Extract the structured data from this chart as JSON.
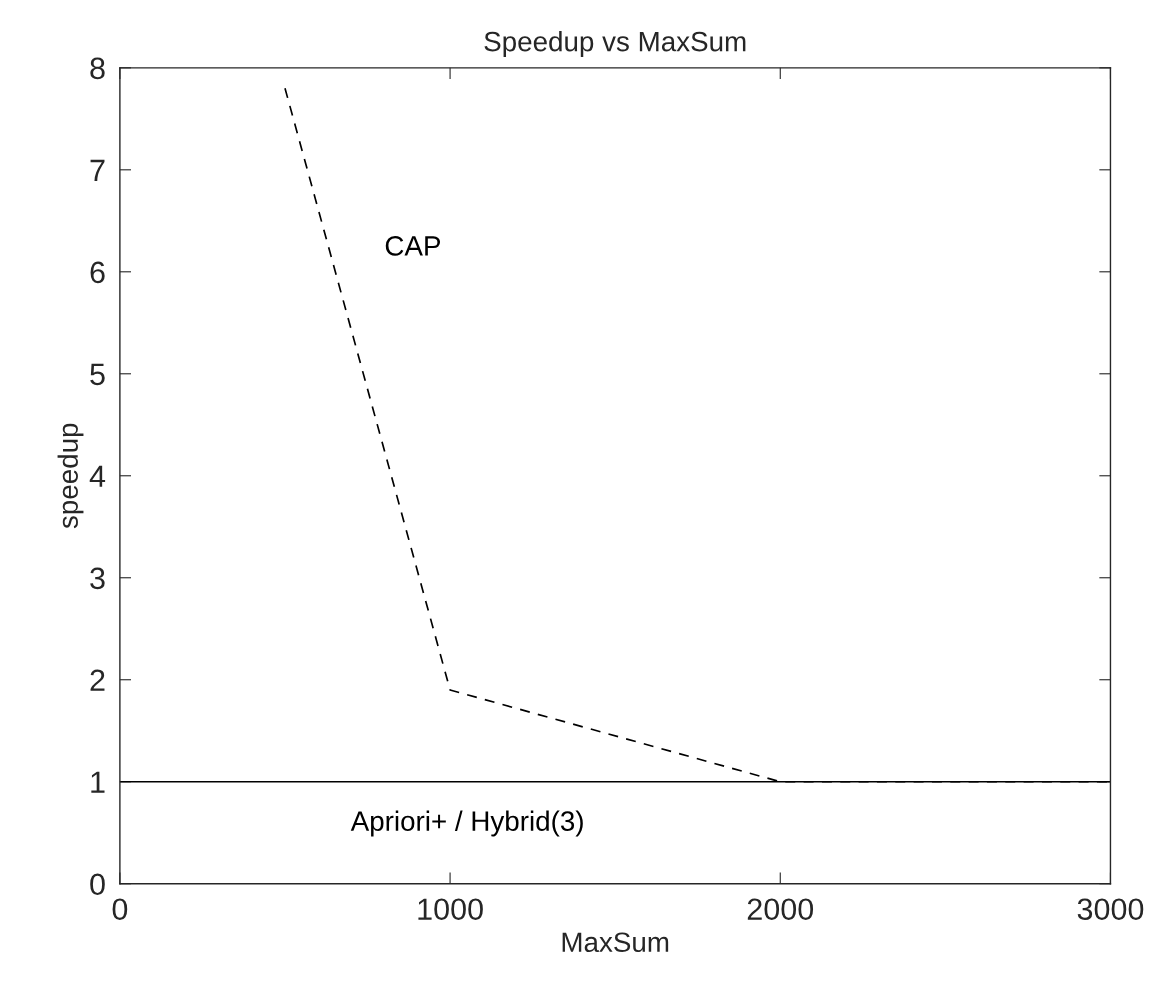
{
  "chart_data": {
    "type": "line",
    "title": "Speedup vs MaxSum",
    "xlabel": "MaxSum",
    "ylabel": "speedup",
    "xlim": [
      0,
      3000
    ],
    "xticks": [
      0,
      1000,
      2000,
      3000
    ],
    "ylim": [
      0,
      8
    ],
    "yticks": [
      0,
      1,
      2,
      3,
      4,
      5,
      6,
      7,
      8
    ],
    "grid": false,
    "legend": false,
    "marker": "none",
    "series": [
      {
        "name": "CAP",
        "color": "#000000",
        "line_style": "dashed",
        "x": [
          500,
          1000,
          2000,
          3000
        ],
        "values": [
          7.8,
          1.9,
          1.0,
          1.0
        ]
      },
      {
        "name": "Apriori+ / Hybrid(3)",
        "color": "#000000",
        "line_style": "solid",
        "x": [
          0,
          3000
        ],
        "values": [
          1.0,
          1.0
        ]
      }
    ]
  }
}
